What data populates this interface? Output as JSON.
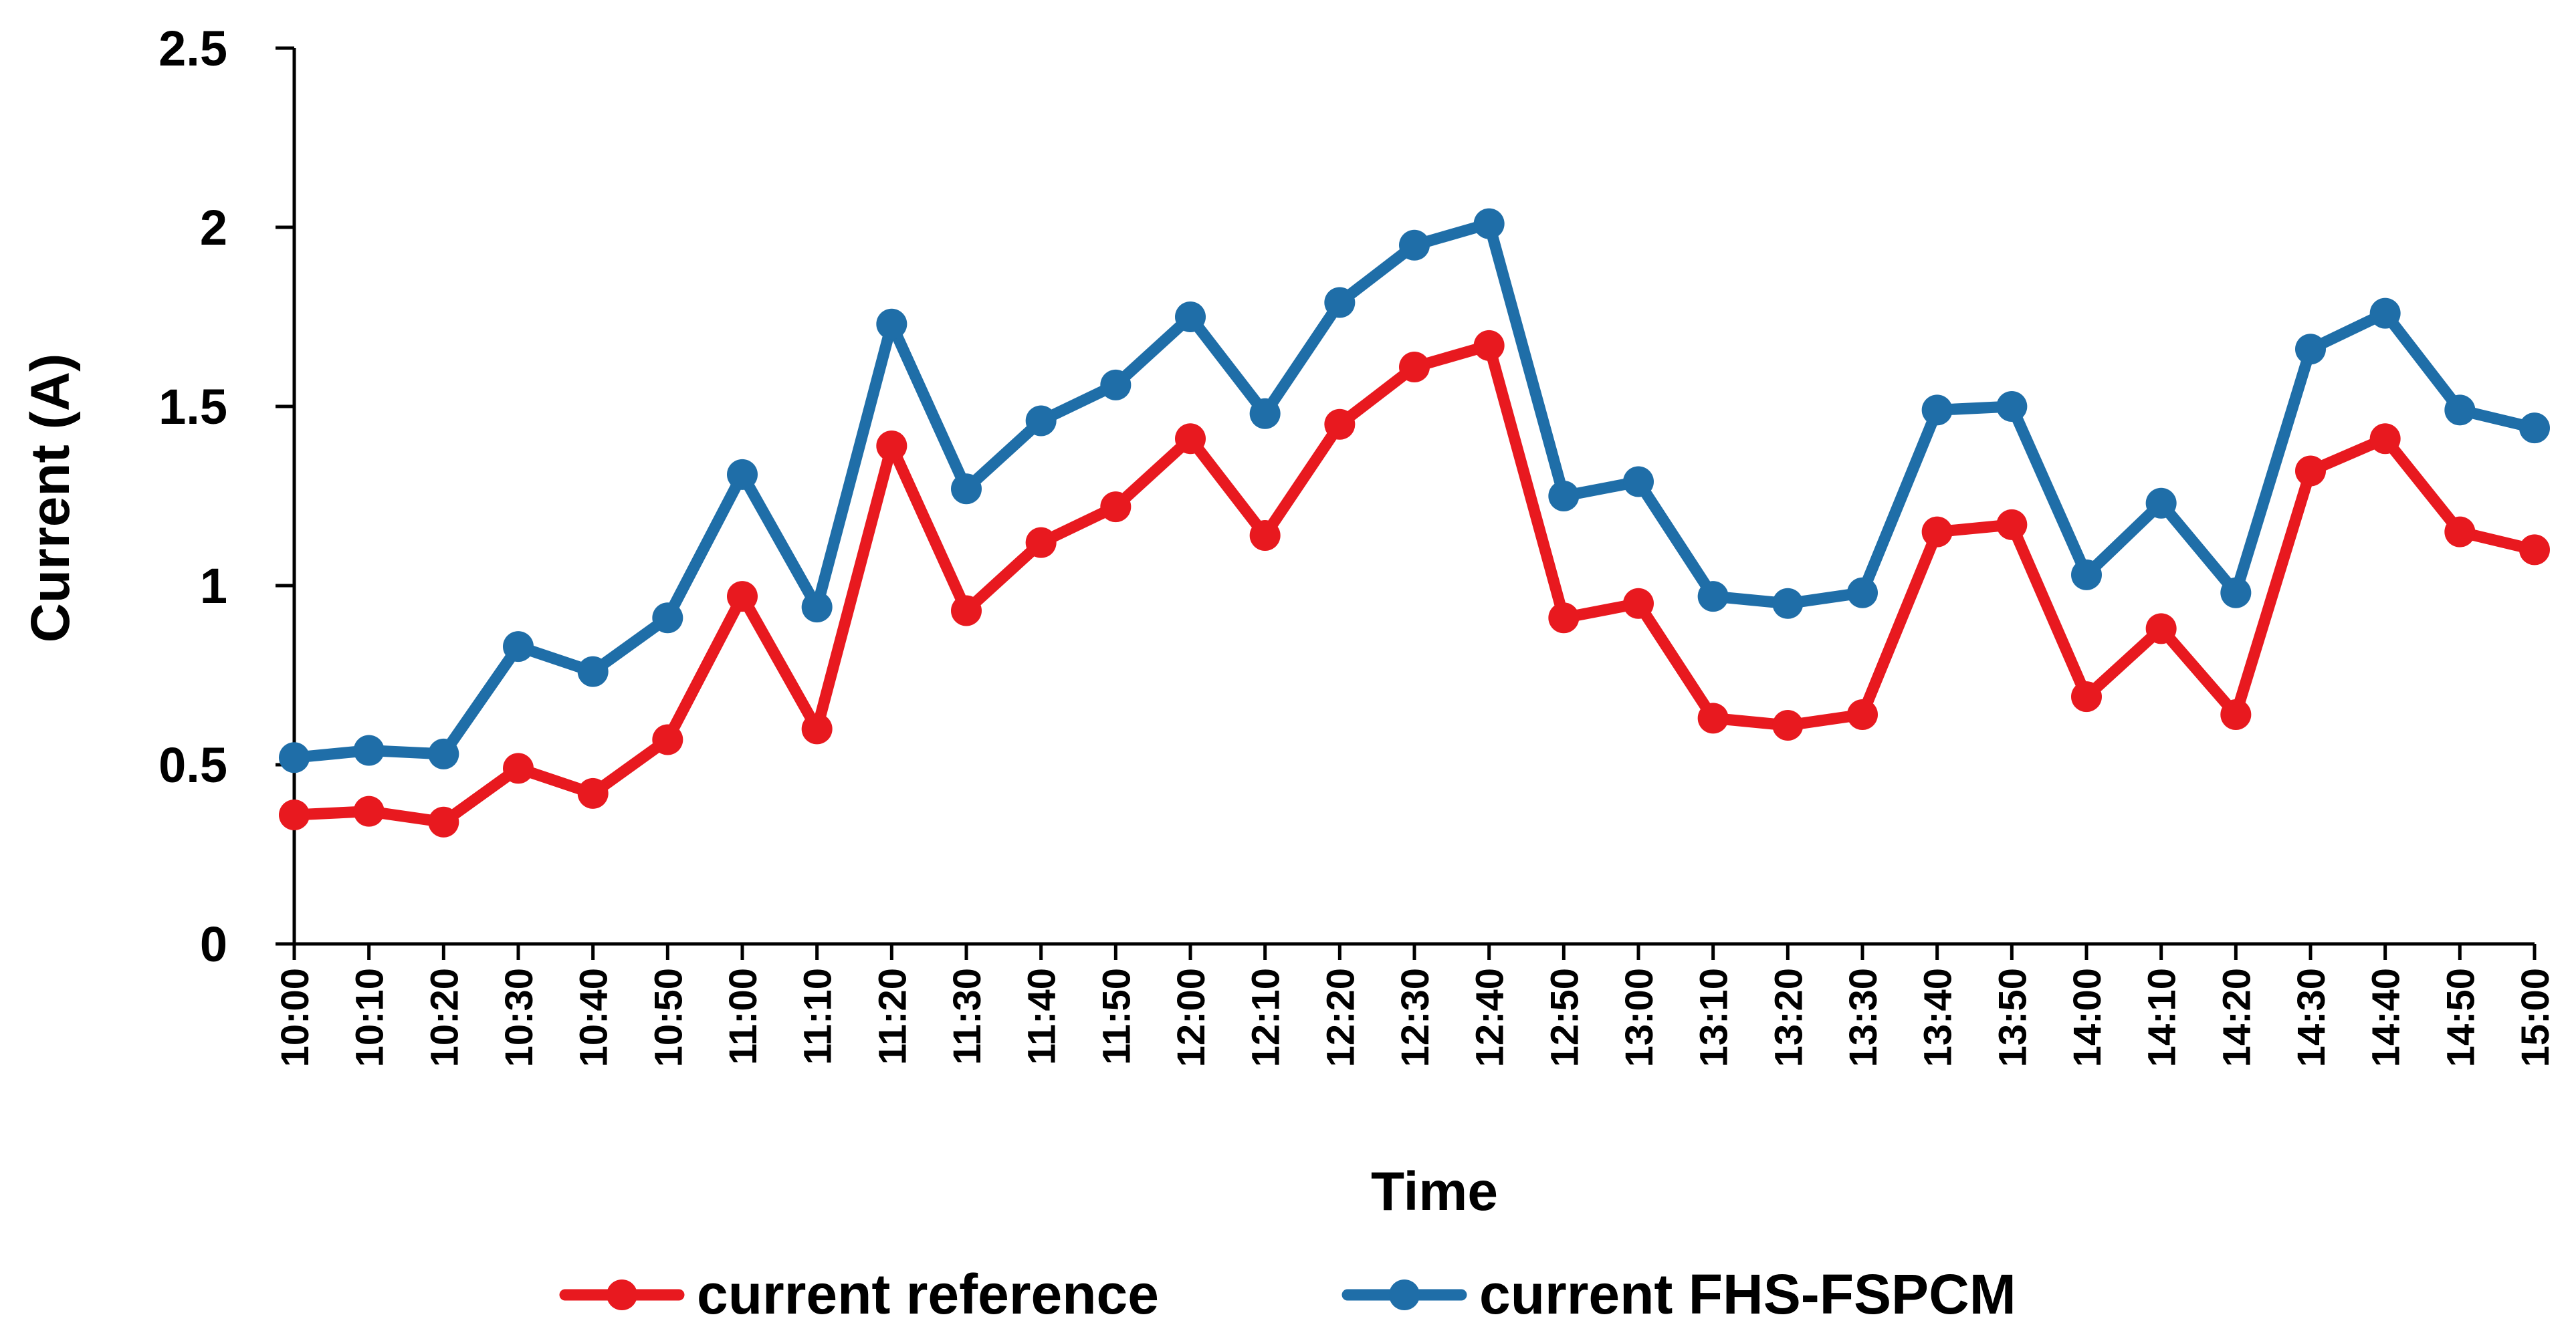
{
  "chart_data": {
    "type": "line",
    "title": "",
    "xlabel": "Time",
    "ylabel": "Current (A)",
    "ylim": [
      0,
      2.5
    ],
    "yticks": [
      0,
      0.5,
      1,
      1.5,
      2,
      2.5
    ],
    "ytick_labels": [
      "0",
      "0.5",
      "1",
      "1.5",
      "2",
      "2.5"
    ],
    "grid": false,
    "legend_position": "bottom",
    "categories": [
      "10:00",
      "10:10",
      "10:20",
      "10:30",
      "10:40",
      "10:50",
      "11:00",
      "11:10",
      "11:20",
      "11:30",
      "11:40",
      "11:50",
      "12:00",
      "12:10",
      "12:20",
      "12:30",
      "12:40",
      "12:50",
      "13:00",
      "13:10",
      "13:20",
      "13:30",
      "13:40",
      "13:50",
      "14:00",
      "14:10",
      "14:20",
      "14:30",
      "14:40",
      "14:50",
      "15:00"
    ],
    "series": [
      {
        "name": "current reference",
        "color": "#e8191f",
        "values": [
          0.36,
          0.37,
          0.34,
          0.49,
          0.42,
          0.57,
          0.97,
          0.6,
          1.39,
          0.93,
          1.12,
          1.22,
          1.41,
          1.14,
          1.45,
          1.61,
          1.67,
          0.91,
          0.95,
          0.63,
          0.61,
          0.64,
          1.15,
          1.17,
          0.69,
          0.88,
          0.64,
          1.32,
          1.41,
          1.15,
          1.1
        ]
      },
      {
        "name": "current FHS-FSPCM",
        "color": "#1f6ea8",
        "values": [
          0.52,
          0.54,
          0.53,
          0.83,
          0.76,
          0.91,
          1.31,
          0.94,
          1.73,
          1.27,
          1.46,
          1.56,
          1.75,
          1.48,
          1.79,
          1.95,
          2.01,
          1.25,
          1.29,
          0.97,
          0.95,
          0.98,
          1.49,
          1.5,
          1.03,
          1.23,
          0.98,
          1.66,
          1.76,
          1.49,
          1.44
        ]
      }
    ]
  }
}
